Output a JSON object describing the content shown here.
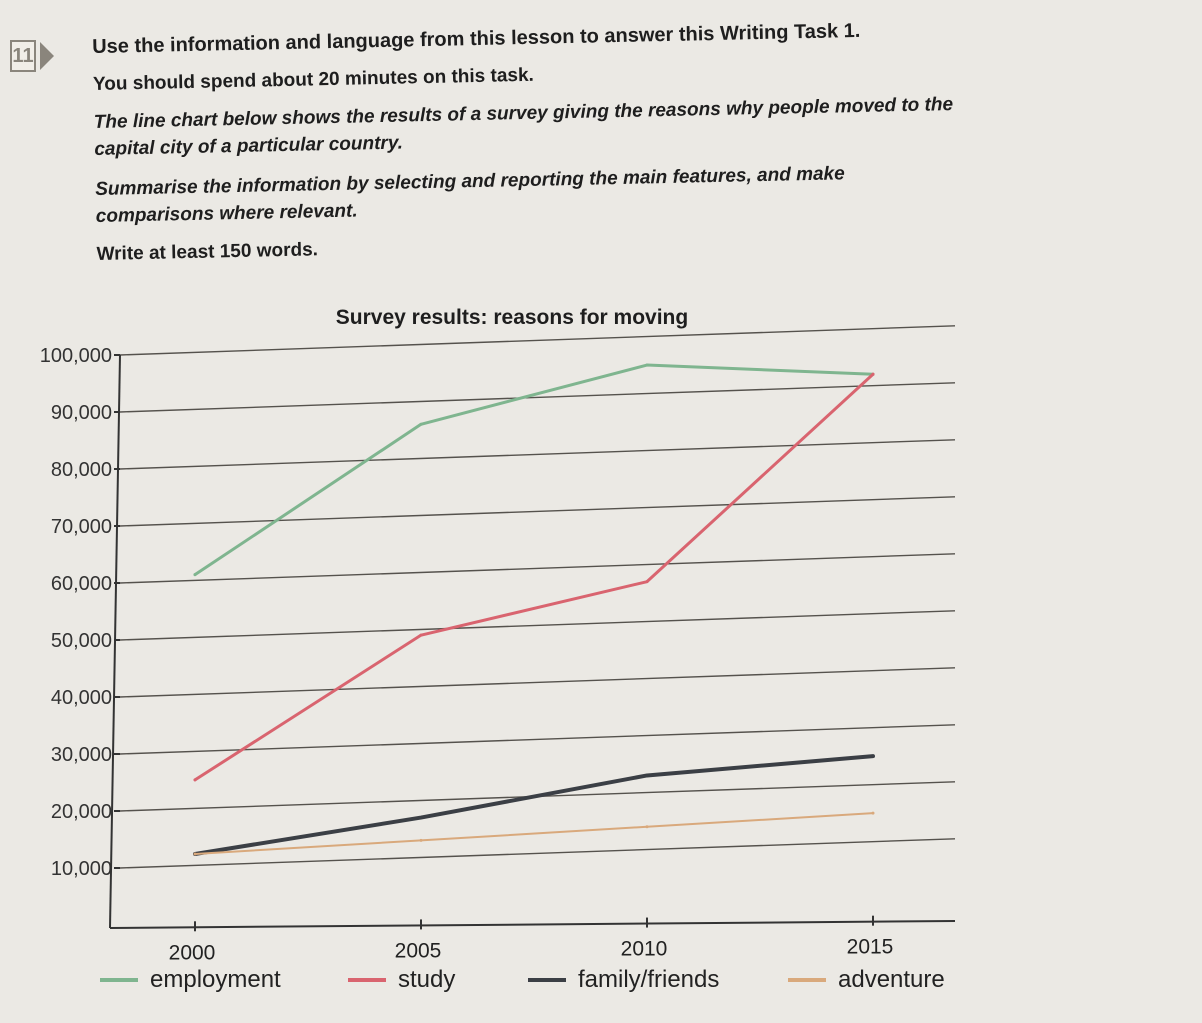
{
  "exercise": {
    "number": "11",
    "heading": "Use the information and language from this lesson to answer this Writing Task 1.",
    "time_instruction": "You should spend about 20 minutes on this task.",
    "prompt": "The line chart below shows the results of a survey giving the reasons why people moved to the capital city of a particular country.",
    "summary_instruction": "Summarise the information by selecting and reporting the main features, and make comparisons where relevant.",
    "word_count": "Write at least 150 words."
  },
  "chart_data": {
    "type": "line",
    "title": "Survey results: reasons for moving",
    "xlabel": "",
    "ylabel": "",
    "x": [
      2000,
      2005,
      2010,
      2015
    ],
    "x_tick_labels": [
      "2000",
      "2005",
      "2010",
      "2015"
    ],
    "y_tick_labels": [
      "10,000",
      "20,000",
      "30,000",
      "40,000",
      "50,000",
      "60,000",
      "70,000",
      "80,000",
      "90,000",
      "100,000"
    ],
    "ylim": [
      0,
      100000
    ],
    "grid": true,
    "legend_position": "bottom",
    "series": [
      {
        "name": "employment",
        "color": "#7fb58f",
        "values": [
          61000,
          86000,
          95000,
          92000
        ]
      },
      {
        "name": "study",
        "color": "#d9646f",
        "values": [
          25000,
          49000,
          57000,
          92000
        ]
      },
      {
        "name": "family/friends",
        "color": "#3b3f45",
        "values": [
          12000,
          17000,
          23000,
          25000
        ]
      },
      {
        "name": "adventure",
        "color": "#d9a97c",
        "values": [
          12000,
          13000,
          14000,
          15000
        ]
      }
    ]
  }
}
